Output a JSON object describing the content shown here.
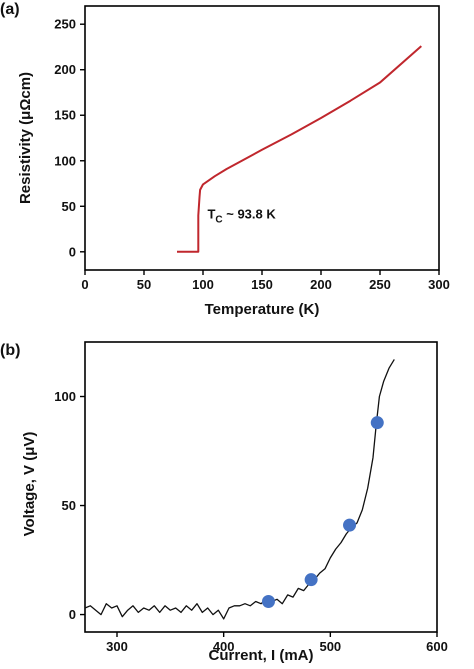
{
  "chart_data": [
    {
      "type": "line",
      "panel_label": "(a)",
      "xlabel": "Temperature (K)",
      "ylabel": "Resistivity (μΩcm)",
      "xlim": [
        0,
        300
      ],
      "ylim": [
        -20,
        270
      ],
      "xticks": [
        0,
        50,
        100,
        150,
        200,
        250,
        300
      ],
      "yticks": [
        0,
        50,
        100,
        150,
        200,
        250
      ],
      "grid": false,
      "annotation": {
        "prefix": "T",
        "subscript": "C",
        "suffix": " ~ 93.8 K",
        "x": 97,
        "y": 30
      },
      "series": [
        {
          "color": "#c0272d",
          "x": [
            78,
            96,
            96,
            97,
            97.5,
            100,
            110,
            120,
            130,
            150,
            175,
            200,
            225,
            250,
            285
          ],
          "y": [
            0,
            0,
            40,
            60,
            68,
            74,
            83,
            91,
            98,
            112,
            129,
            147,
            166,
            186,
            226
          ]
        }
      ]
    },
    {
      "type": "line",
      "panel_label": "(b)",
      "xlabel": "Current, I (mA)",
      "ylabel": "Voltage, V (μV)",
      "xlim": [
        270,
        600
      ],
      "ylim": [
        -8,
        125
      ],
      "xticks": [
        300,
        400,
        500,
        600
      ],
      "yticks": [
        0,
        50,
        100
      ],
      "grid": false,
      "series": [
        {
          "color": "#111111",
          "x": [
            270,
            275,
            280,
            285,
            290,
            295,
            300,
            305,
            310,
            315,
            320,
            325,
            330,
            335,
            340,
            345,
            350,
            355,
            360,
            365,
            370,
            375,
            380,
            385,
            390,
            395,
            400,
            405,
            410,
            415,
            420,
            425,
            430,
            435,
            440,
            445,
            450,
            455,
            460,
            465,
            470,
            475,
            480,
            485,
            490,
            495,
            500,
            505,
            510,
            515,
            520,
            525,
            530,
            535,
            540,
            543,
            546,
            550,
            555,
            560
          ],
          "y": [
            3,
            4,
            2,
            0,
            5,
            3,
            4,
            -1,
            2,
            4,
            1,
            3,
            2,
            4,
            1,
            4,
            2,
            3,
            1,
            4,
            2,
            5,
            1,
            3,
            0,
            2,
            -2,
            3,
            4,
            4,
            5,
            4,
            6,
            5,
            7,
            6,
            7,
            5,
            9,
            8,
            12,
            11,
            14,
            16,
            19,
            21,
            26,
            30,
            33,
            37,
            40,
            42,
            48,
            58,
            72,
            87,
            100,
            107,
            113,
            117
          ]
        },
        {
          "type": "scatter",
          "color": "#4472c4",
          "x": [
            442,
            482,
            518,
            544
          ],
          "y": [
            6,
            16,
            41,
            88
          ]
        }
      ]
    }
  ]
}
